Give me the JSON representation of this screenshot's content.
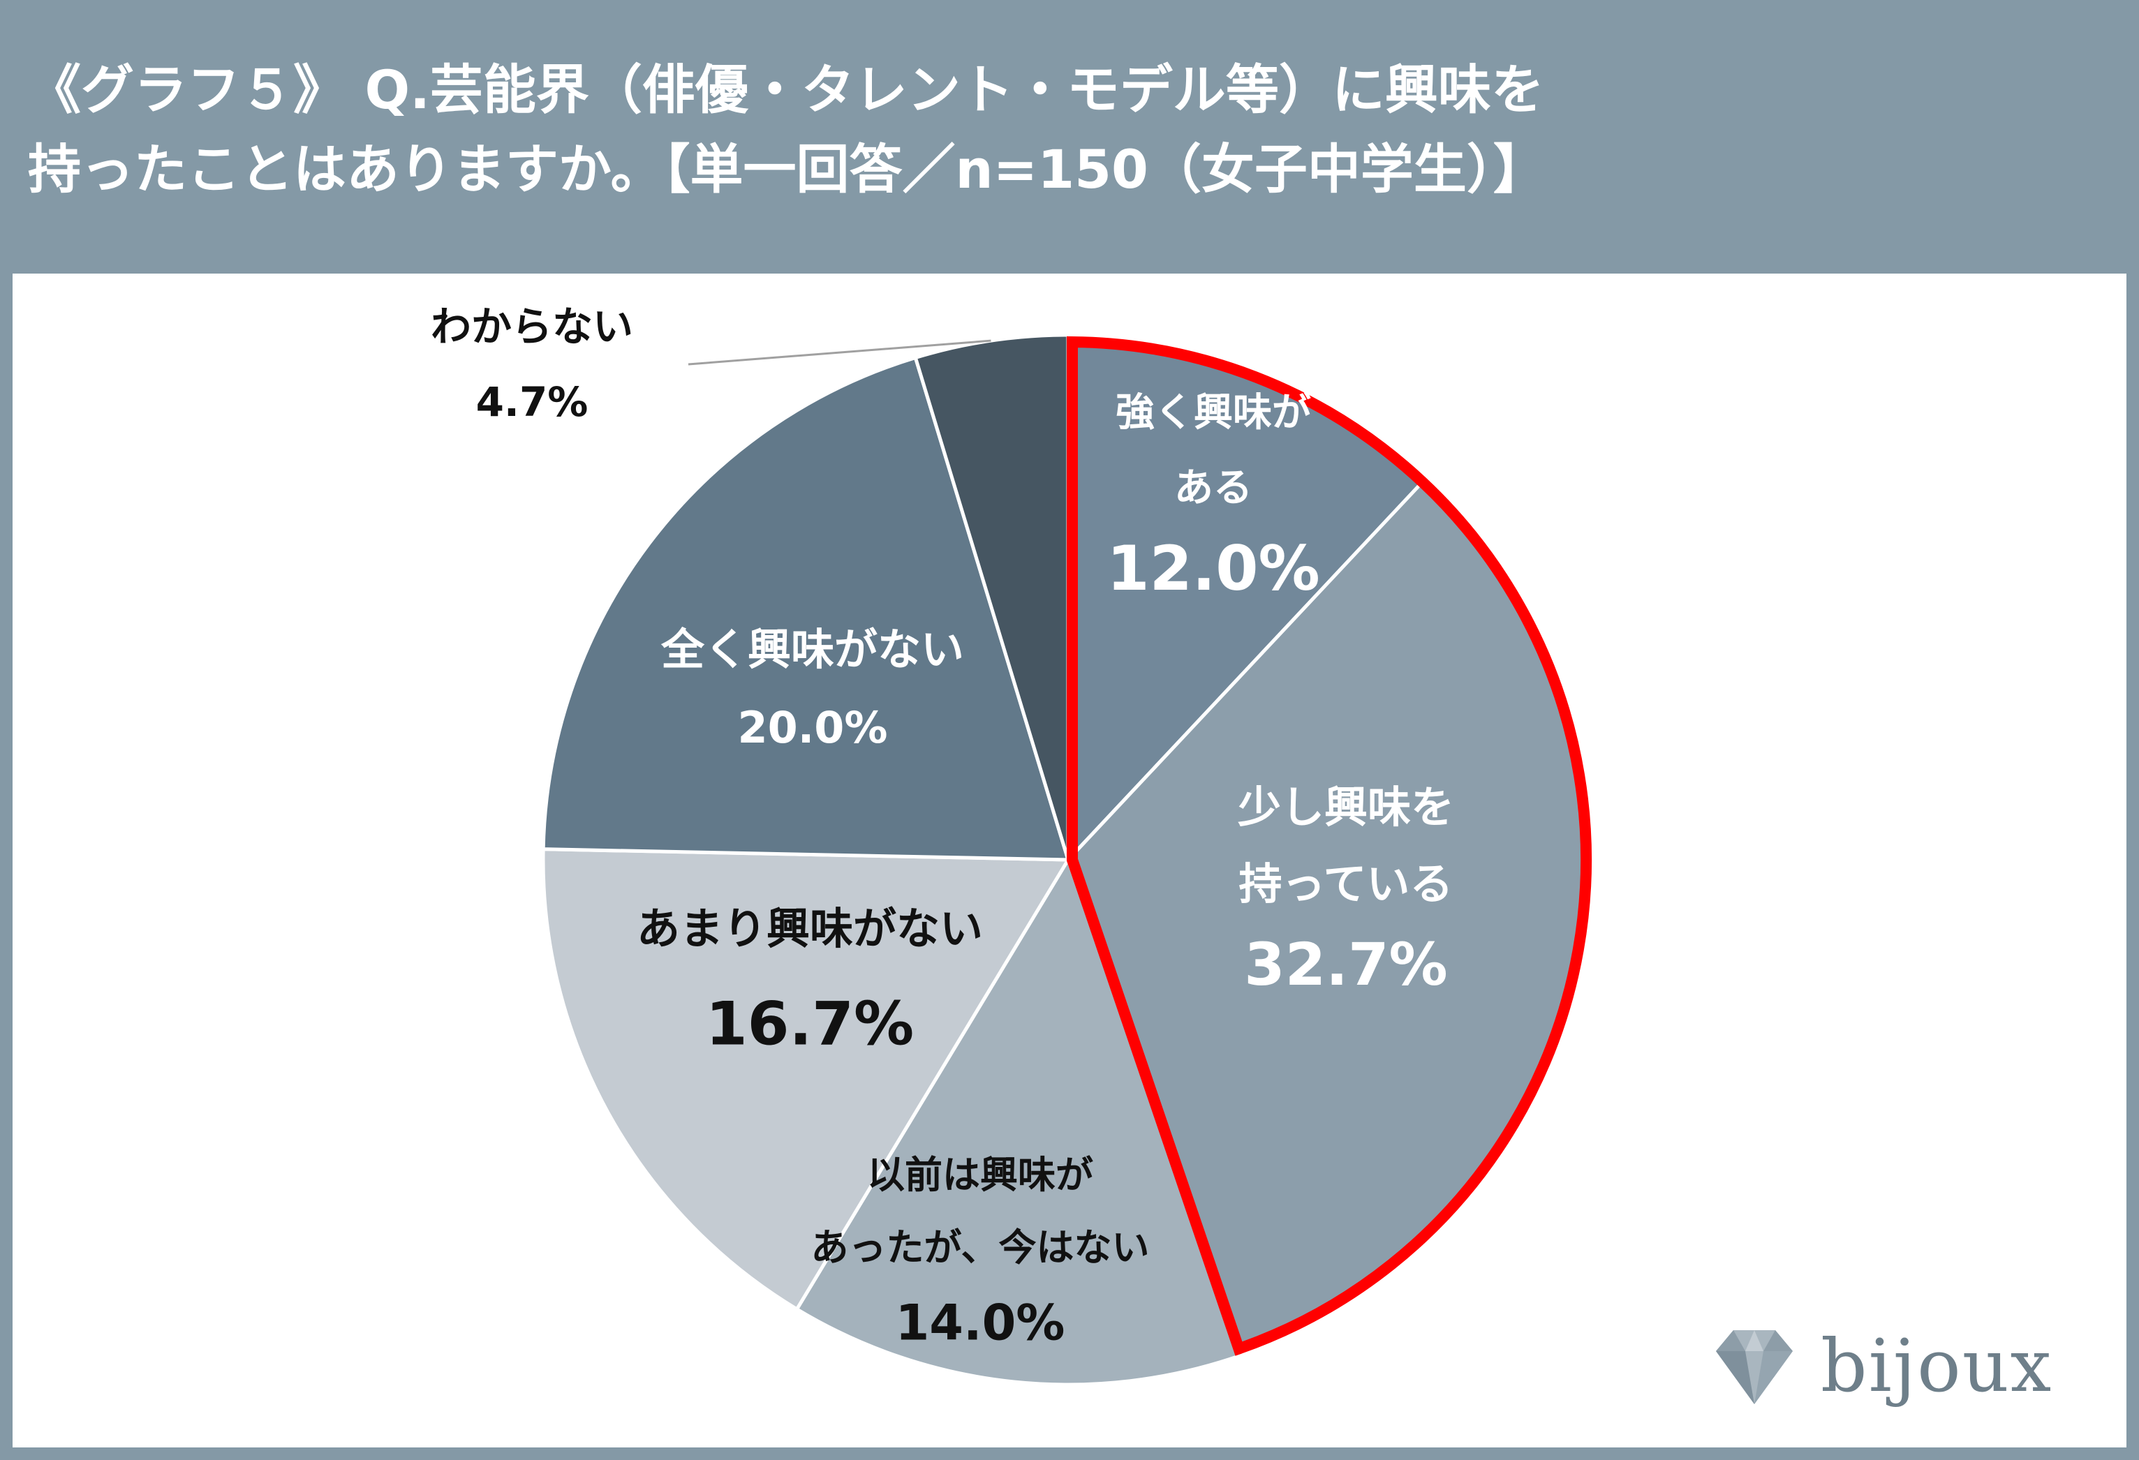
{
  "title": {
    "line1": "《グラフ５》 Q.芸能界（俳優・タレント・モデル等）に興味を",
    "line2": "持ったことはありますか。【単一回答／n=150（女子中学生）】"
  },
  "chart_data": {
    "type": "pie",
    "start_angle": "12 o'clock, clockwise",
    "highlight": "red outline around 強く興味がある + 少し興味を持っている",
    "highlight_color": "#ff0000",
    "slices": [
      {
        "label_lines": [
          "強く興味が",
          "ある"
        ],
        "value": 12.0,
        "value_label": "12.0%",
        "color": "#72889a",
        "text_color": "#ffffff"
      },
      {
        "label_lines": [
          "少し興味を",
          "持っている"
        ],
        "value": 32.7,
        "value_label": "32.7%",
        "color": "#8c9eab",
        "text_color": "#ffffff"
      },
      {
        "label_lines": [
          "以前は興味が",
          "あったが、今はない"
        ],
        "value": 14.0,
        "value_label": "14.0%",
        "color": "#a4b2bc",
        "text_color": "#111111"
      },
      {
        "label_lines": [
          "あまり興味がない"
        ],
        "value": 16.7,
        "value_label": "16.7%",
        "color": "#c4cbd2",
        "text_color": "#111111"
      },
      {
        "label_lines": [
          "全く興味がない"
        ],
        "value": 20.0,
        "value_label": "20.0%",
        "color": "#62798a",
        "text_color": "#ffffff"
      },
      {
        "label_lines": [
          "わからない"
        ],
        "value": 4.7,
        "value_label": "4.7%",
        "color": "#465662",
        "text_color": "#111111",
        "label_outside": true
      }
    ]
  },
  "logo": {
    "text": "bijoux",
    "icon": "diamond-icon"
  }
}
